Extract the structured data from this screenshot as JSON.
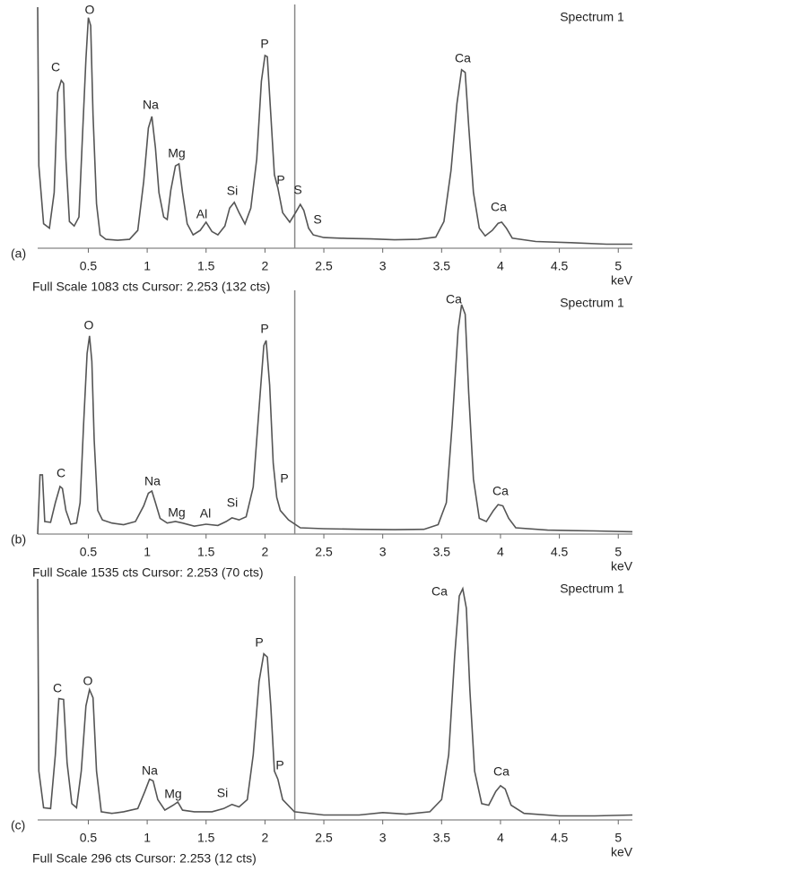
{
  "chart_data": [
    {
      "type": "line",
      "panel_label": "(a)",
      "title": "Spectrum 1",
      "footer": "Full Scale 1083 cts Cursor: 2.253 (132 cts)",
      "x_label": "keV",
      "color": "#555555",
      "xlim": [
        0.07,
        5.12
      ],
      "xticks": [
        0.5,
        1,
        1.5,
        2,
        2.5,
        3,
        3.5,
        4,
        4.5,
        5
      ],
      "ylim": [
        0,
        1083
      ],
      "cursor": 2.253,
      "annotations": [
        "C",
        "O",
        "Na",
        "Mg",
        "Al",
        "Si",
        "P",
        "P",
        "S",
        "S",
        "Ca",
        "Ca"
      ],
      "x": [
        0.07,
        0.08,
        0.12,
        0.17,
        0.21,
        0.24,
        0.27,
        0.29,
        0.31,
        0.34,
        0.38,
        0.42,
        0.45,
        0.48,
        0.5,
        0.52,
        0.54,
        0.57,
        0.6,
        0.65,
        0.75,
        0.85,
        0.92,
        0.97,
        1.01,
        1.04,
        1.07,
        1.1,
        1.14,
        1.17,
        1.2,
        1.24,
        1.27,
        1.3,
        1.34,
        1.39,
        1.45,
        1.5,
        1.55,
        1.6,
        1.66,
        1.7,
        1.74,
        1.78,
        1.83,
        1.88,
        1.93,
        1.97,
        2.0,
        2.02,
        2.05,
        2.08,
        2.11,
        2.15,
        2.21,
        2.26,
        2.3,
        2.33,
        2.37,
        2.41,
        2.5,
        2.7,
        2.9,
        3.1,
        3.3,
        3.45,
        3.52,
        3.58,
        3.63,
        3.67,
        3.7,
        3.73,
        3.77,
        3.82,
        3.87,
        3.93,
        3.98,
        4.01,
        4.05,
        4.1,
        4.3,
        4.6,
        4.9,
        5.12
      ],
      "values": [
        1083,
        371,
        110,
        90,
        250,
        700,
        754,
        740,
        400,
        120,
        100,
        140,
        500,
        850,
        1036,
        1000,
        600,
        200,
        60,
        40,
        36,
        40,
        80,
        300,
        540,
        592,
        450,
        250,
        140,
        129,
        260,
        370,
        379,
        250,
        110,
        60,
        80,
        117,
        75,
        60,
        100,
        180,
        206,
        160,
        109,
        180,
        400,
        750,
        866,
        860,
        600,
        330,
        270,
        160,
        117,
        160,
        197,
        170,
        90,
        60,
        48,
        44,
        42,
        38,
        40,
        50,
        120,
        350,
        650,
        802,
        790,
        550,
        250,
        90,
        55,
        80,
        112,
        117,
        90,
        45,
        30,
        25,
        18,
        18
      ]
    },
    {
      "type": "line",
      "panel_label": "(b)",
      "title": "Spectrum 1",
      "footer": "Full Scale 1535 cts Cursor: 2.253 (70 cts)",
      "x_label": "keV",
      "color": "#555555",
      "xlim": [
        0.07,
        5.12
      ],
      "xticks": [
        0.5,
        1,
        1.5,
        2,
        2.5,
        3,
        3.5,
        4,
        4.5,
        5
      ],
      "ylim": [
        0,
        1535
      ],
      "cursor": 2.253,
      "annotations": [
        "C",
        "O",
        "Na",
        "Mg",
        "Al",
        "Si",
        "P",
        "P",
        "Ca",
        "Ca"
      ],
      "x": [
        0.07,
        0.09,
        0.11,
        0.13,
        0.18,
        0.22,
        0.26,
        0.28,
        0.31,
        0.35,
        0.4,
        0.43,
        0.46,
        0.49,
        0.51,
        0.53,
        0.55,
        0.58,
        0.62,
        0.7,
        0.8,
        0.9,
        0.97,
        1.01,
        1.04,
        1.07,
        1.11,
        1.17,
        1.24,
        1.3,
        1.4,
        1.5,
        1.6,
        1.67,
        1.72,
        1.78,
        1.84,
        1.9,
        1.95,
        1.99,
        2.01,
        2.04,
        2.07,
        2.1,
        2.13,
        2.2,
        2.3,
        2.5,
        2.8,
        3.1,
        3.35,
        3.47,
        3.54,
        3.59,
        3.64,
        3.67,
        3.7,
        3.73,
        3.77,
        3.82,
        3.88,
        3.94,
        3.98,
        4.02,
        4.07,
        4.13,
        4.4,
        4.8,
        5.12
      ],
      "values": [
        0,
        377,
        377,
        80,
        75,
        200,
        303,
        290,
        150,
        63,
        70,
        200,
        700,
        1150,
        1262,
        1100,
        600,
        150,
        90,
        70,
        60,
        80,
        180,
        260,
        274,
        200,
        100,
        70,
        80,
        70,
        50,
        63,
        55,
        80,
        103,
        90,
        110,
        300,
        800,
        1200,
        1233,
        950,
        450,
        234,
        150,
        90,
        40,
        34,
        30,
        28,
        30,
        60,
        200,
        700,
        1300,
        1461,
        1400,
        900,
        350,
        100,
        80,
        150,
        188,
        180,
        100,
        40,
        25,
        20,
        15
      ]
    },
    {
      "type": "line",
      "panel_label": "(c)",
      "title": "Spectrum 1",
      "footer": "Full Scale 296 cts Cursor: 2.253 (12 cts)",
      "x_label": "keV",
      "color": "#555555",
      "xlim": [
        0.07,
        5.12
      ],
      "xticks": [
        0.5,
        1,
        1.5,
        2,
        2.5,
        3,
        3.5,
        4,
        4.5,
        5
      ],
      "ylim": [
        0,
        296
      ],
      "cursor": 2.253,
      "annotations": [
        "C",
        "O",
        "Na",
        "Mg",
        "Si",
        "P",
        "P",
        "Ca",
        "Ca"
      ],
      "x": [
        0.07,
        0.08,
        0.12,
        0.18,
        0.22,
        0.25,
        0.29,
        0.32,
        0.36,
        0.4,
        0.44,
        0.48,
        0.51,
        0.54,
        0.57,
        0.61,
        0.7,
        0.8,
        0.92,
        0.98,
        1.02,
        1.05,
        1.09,
        1.15,
        1.22,
        1.26,
        1.3,
        1.4,
        1.55,
        1.65,
        1.72,
        1.78,
        1.85,
        1.9,
        1.95,
        1.99,
        2.02,
        2.05,
        2.08,
        2.11,
        2.15,
        2.25,
        2.5,
        2.8,
        3.0,
        3.2,
        3.4,
        3.5,
        3.56,
        3.61,
        3.65,
        3.68,
        3.71,
        3.74,
        3.78,
        3.84,
        3.9,
        3.96,
        4.0,
        4.04,
        4.09,
        4.2,
        4.5,
        4.8,
        5.12
      ],
      "values": [
        296,
        60,
        15,
        14,
        80,
        149,
        148,
        70,
        20,
        15,
        60,
        140,
        160,
        150,
        60,
        10,
        8,
        10,
        14,
        35,
        50,
        48,
        25,
        12,
        18,
        22,
        12,
        10,
        10,
        14,
        19,
        16,
        25,
        80,
        170,
        204,
        200,
        140,
        60,
        50,
        25,
        10,
        6,
        6,
        9,
        7,
        10,
        25,
        80,
        200,
        275,
        284,
        260,
        160,
        60,
        20,
        18,
        35,
        42,
        38,
        18,
        8,
        5,
        5,
        6
      ]
    }
  ]
}
